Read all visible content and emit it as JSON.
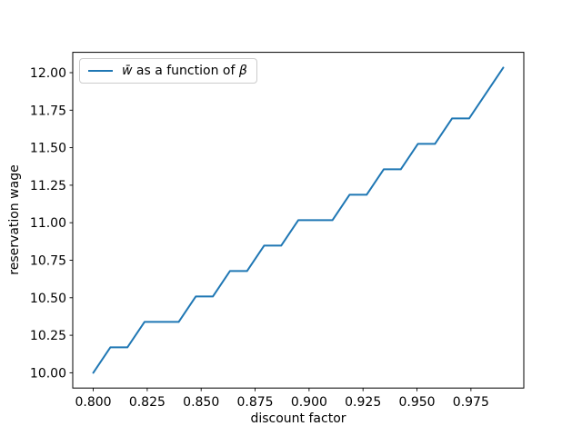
{
  "figure": {
    "background": "#ffffff"
  },
  "legend": {
    "wbar": "w̄",
    "label_mid": " as a function of ",
    "beta": "β",
    "edge_color": "#cccccc"
  },
  "chart_data": {
    "type": "line",
    "title": "",
    "xlabel": "discount factor",
    "ylabel": "reservation wage",
    "x": [
      0.8,
      0.80792,
      0.81583,
      0.82375,
      0.83167,
      0.83958,
      0.8475,
      0.85542,
      0.86333,
      0.87125,
      0.87917,
      0.88708,
      0.895,
      0.90292,
      0.91083,
      0.91875,
      0.92667,
      0.93458,
      0.9425,
      0.95042,
      0.95833,
      0.96625,
      0.97417,
      0.98208,
      0.99
    ],
    "series": [
      {
        "name": "w̄ as a function of β",
        "color": "#1f77b4",
        "values": [
          10.0,
          10.16949,
          10.16949,
          10.33898,
          10.33898,
          10.33898,
          10.50847,
          10.50847,
          10.67797,
          10.67797,
          10.84746,
          10.84746,
          11.01695,
          11.01695,
          11.01695,
          11.18644,
          11.18644,
          11.35593,
          11.35593,
          11.52542,
          11.52542,
          11.69492,
          11.69492,
          11.86441,
          12.0339
        ]
      }
    ],
    "xlim": [
      0.7905,
      0.9995
    ],
    "ylim": [
      9.89831,
      12.13559
    ],
    "x_ticks": [
      0.8,
      0.825,
      0.85,
      0.875,
      0.9,
      0.925,
      0.95,
      0.975
    ],
    "x_tick_labels": [
      "0.800",
      "0.825",
      "0.850",
      "0.875",
      "0.900",
      "0.925",
      "0.950",
      "0.975"
    ],
    "y_ticks": [
      10.0,
      10.25,
      10.5,
      10.75,
      11.0,
      11.25,
      11.5,
      11.75,
      12.0
    ],
    "y_tick_labels": [
      "10.00",
      "10.25",
      "10.50",
      "10.75",
      "11.00",
      "11.25",
      "11.50",
      "11.75",
      "12.00"
    ],
    "grid": false,
    "legend_position": "upper left",
    "axis_color": "#000000"
  }
}
